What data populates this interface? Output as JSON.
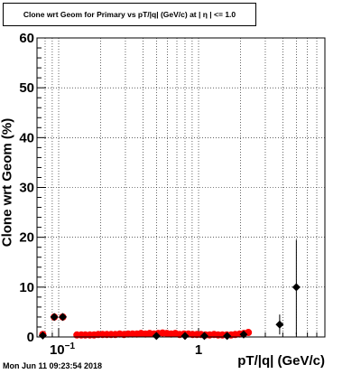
{
  "title": "Clone wrt Geom for Primary vs pT/|q| (GeV/c) at | η | <= 1.0",
  "timestamp": "Mon Jun 11 09:23:54 2018",
  "chart_data": {
    "type": "scatter",
    "title": "Clone wrt Geom for Primary vs pT/|q| (GeV/c) at | η | <= 1.0",
    "xlabel": "pT/|q| (GeV/c)",
    "ylabel": "Clone wrt Geom (%)",
    "xscale": "log",
    "xlim": [
      0.07,
      8.0
    ],
    "ylim": [
      0,
      60
    ],
    "grid": true,
    "x_tick_labels": [
      {
        "value": 0.1,
        "label": "10",
        "sup": "−1"
      },
      {
        "value": 1,
        "label": "1",
        "sup": ""
      }
    ],
    "y_ticks": [
      0,
      10,
      20,
      30,
      40,
      50,
      60
    ],
    "colors": {
      "primary": "#ff0000",
      "secondary": "#000000"
    },
    "series": [
      {
        "marker": "circle",
        "color": "#ff0000",
        "points": [
          {
            "x": 0.077,
            "y": 0.5,
            "xerr": 0.004
          },
          {
            "x": 0.093,
            "y": 4.0,
            "xerr": 0.005
          },
          {
            "x": 0.107,
            "y": 4.0,
            "xerr": 0.006
          },
          {
            "x": 0.135,
            "y": 0.4
          },
          {
            "x": 0.145,
            "y": 0.4
          },
          {
            "x": 0.155,
            "y": 0.4
          },
          {
            "x": 0.167,
            "y": 0.4
          },
          {
            "x": 0.179,
            "y": 0.4
          },
          {
            "x": 0.192,
            "y": 0.5
          },
          {
            "x": 0.206,
            "y": 0.5
          },
          {
            "x": 0.221,
            "y": 0.5
          },
          {
            "x": 0.237,
            "y": 0.5
          },
          {
            "x": 0.254,
            "y": 0.5
          },
          {
            "x": 0.273,
            "y": 0.6
          },
          {
            "x": 0.293,
            "y": 0.5
          },
          {
            "x": 0.314,
            "y": 0.6
          },
          {
            "x": 0.337,
            "y": 0.6
          },
          {
            "x": 0.362,
            "y": 0.6
          },
          {
            "x": 0.388,
            "y": 0.7
          },
          {
            "x": 0.417,
            "y": 0.6
          },
          {
            "x": 0.447,
            "y": 0.7
          },
          {
            "x": 0.48,
            "y": 0.6
          },
          {
            "x": 0.515,
            "y": 0.7
          },
          {
            "x": 0.553,
            "y": 0.8
          },
          {
            "x": 0.593,
            "y": 0.7
          },
          {
            "x": 0.637,
            "y": 0.6
          },
          {
            "x": 0.683,
            "y": 0.7
          },
          {
            "x": 0.733,
            "y": 0.5
          },
          {
            "x": 0.787,
            "y": 0.6
          },
          {
            "x": 0.845,
            "y": 0.6
          },
          {
            "x": 0.907,
            "y": 0.5
          },
          {
            "x": 0.973,
            "y": 0.5
          },
          {
            "x": 1.04,
            "y": 0.5
          },
          {
            "x": 1.12,
            "y": 0.4
          },
          {
            "x": 1.2,
            "y": 0.4
          },
          {
            "x": 1.29,
            "y": 0.5
          },
          {
            "x": 1.38,
            "y": 0.4
          },
          {
            "x": 1.48,
            "y": 0.4
          },
          {
            "x": 1.59,
            "y": 0.4
          },
          {
            "x": 1.71,
            "y": 0.4
          },
          {
            "x": 1.83,
            "y": 0.5
          },
          {
            "x": 1.97,
            "y": 0.6
          },
          {
            "x": 2.11,
            "y": 0.7
          },
          {
            "x": 2.27,
            "y": 0.9
          }
        ]
      },
      {
        "marker": "diamond",
        "color": "#000000",
        "points": [
          {
            "x": 0.077,
            "y": 0.3
          },
          {
            "x": 0.093,
            "y": 4.0
          },
          {
            "x": 0.107,
            "y": 4.0
          },
          {
            "x": 0.5,
            "y": 0.2
          },
          {
            "x": 0.8,
            "y": 0.2
          },
          {
            "x": 1.1,
            "y": 0.2
          },
          {
            "x": 1.6,
            "y": 0.2
          },
          {
            "x": 2.1,
            "y": 0.5
          },
          {
            "x": 3.8,
            "y": 2.5,
            "yerr": 2.0
          },
          {
            "x": 5.0,
            "y": 10.0,
            "yerr": 9.5
          }
        ]
      }
    ]
  }
}
